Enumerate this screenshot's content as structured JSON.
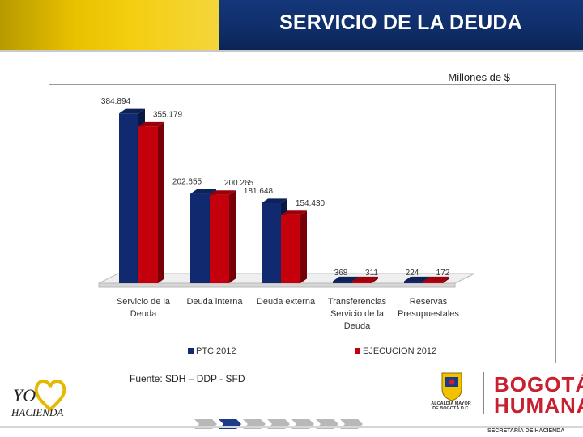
{
  "header": {
    "title": "SERVICIO DE LA DEUDA"
  },
  "units_label": "Millones de $",
  "source_label": "Fuente: SDH – DDP - SFD",
  "colors": {
    "ptc": "#11296e",
    "ejec": "#c4000c",
    "gold": "#e9c200",
    "navy": "#0f2d68"
  },
  "chart_data": {
    "type": "bar",
    "style": "3d-clustered-column",
    "title": "",
    "xlabel": "",
    "ylabel": "",
    "ylim": [
      0,
      400000
    ],
    "grid": false,
    "legend_position": "bottom",
    "categories": [
      [
        "Servicio de la",
        "Deuda"
      ],
      [
        "Deuda interna"
      ],
      [
        "Deuda externa"
      ],
      [
        "Transferencias",
        "Servicio de la",
        "Deuda"
      ],
      [
        "Reservas",
        "Presupuestales"
      ]
    ],
    "series": [
      {
        "name": "PTC 2012",
        "values": [
          384894,
          202655,
          181648,
          368,
          224
        ],
        "labels": [
          "384.894",
          "202.655",
          "181.648",
          "368",
          "224"
        ]
      },
      {
        "name": "EJECUCION 2012",
        "values": [
          355179,
          200265,
          154430,
          311,
          172
        ],
        "labels": [
          "355.179",
          "200.265",
          "154.430",
          "311",
          "172"
        ]
      }
    ]
  },
  "footer": {
    "logo_left": {
      "line1": "YO",
      "line2": "HACIENDA"
    },
    "alcaldia": [
      "ALCALDÍA MAYOR",
      "DE BOGOTÁ D.C."
    ],
    "bogota": {
      "line1": "BOGOTÁ",
      "line2": "HUMANA"
    },
    "secretaria": "SECRETARÍA DE HACIENDA"
  }
}
